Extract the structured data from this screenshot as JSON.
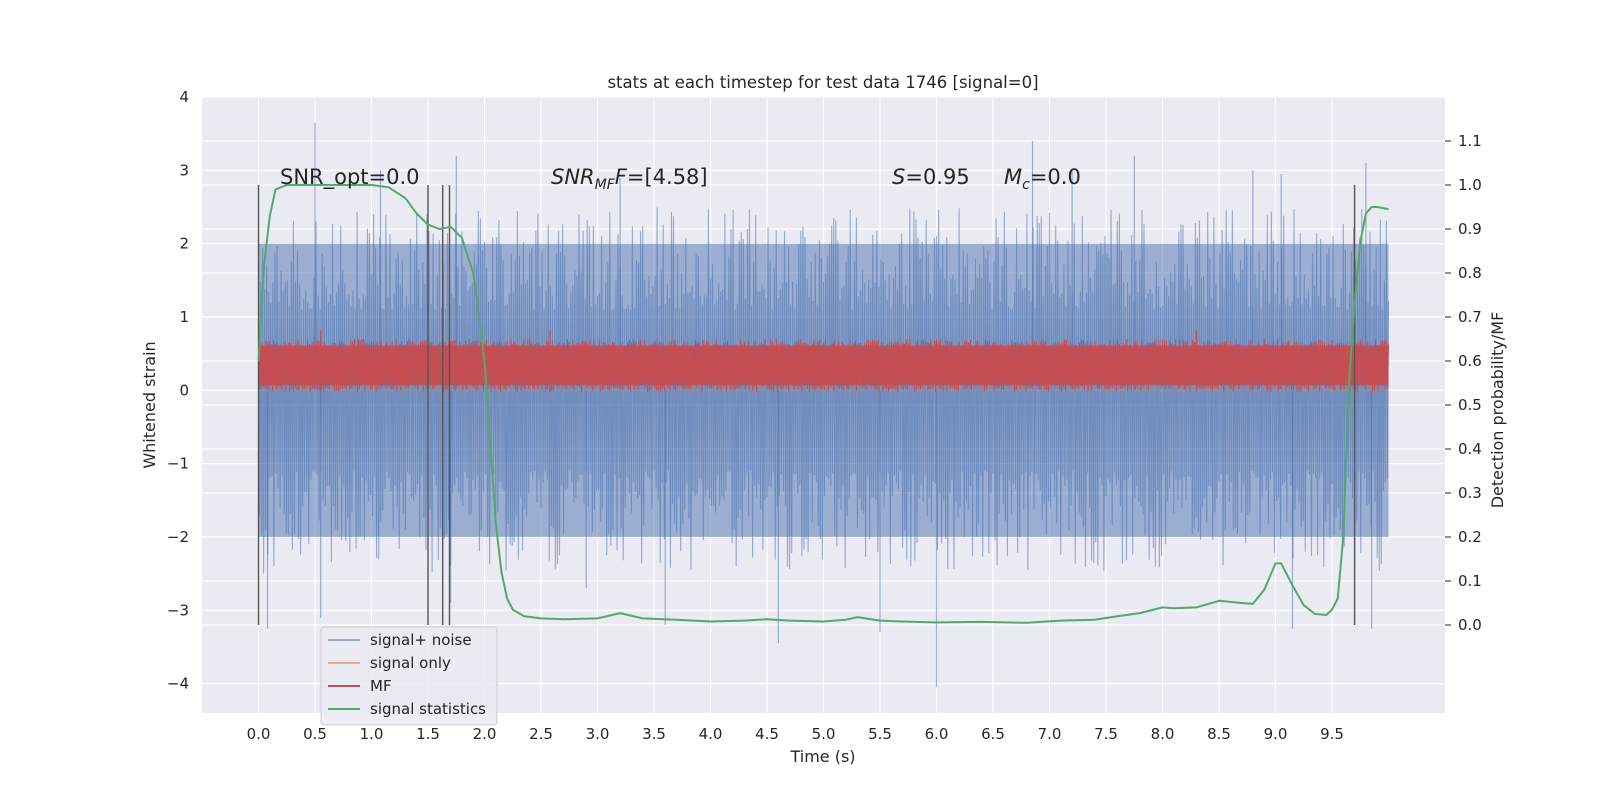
{
  "chart_data": {
    "type": "line",
    "title": "stats at each timestep for test data 1746 [signal=0]",
    "xlabel": "Time (s)",
    "ylabel_left": "Whitened strain",
    "ylabel_right": "Detection probability/MF",
    "xlim": [
      -0.5,
      10.5
    ],
    "ylim_left": [
      -4.4,
      4.0
    ],
    "ylim_right": [
      -0.2,
      1.2
    ],
    "x_ticks": [
      0.0,
      0.5,
      1.0,
      1.5,
      2.0,
      2.5,
      3.0,
      3.5,
      4.0,
      4.5,
      5.0,
      5.5,
      6.0,
      6.5,
      7.0,
      7.5,
      8.0,
      8.5,
      9.0,
      9.5
    ],
    "x_tick_labels": [
      "0.0",
      "0.5",
      "1.0",
      "1.5",
      "2.0",
      "2.5",
      "3.0",
      "3.5",
      "4.0",
      "4.5",
      "5.0",
      "5.5",
      "6.0",
      "6.5",
      "7.0",
      "7.5",
      "8.0",
      "8.5",
      "9.0",
      "9.5"
    ],
    "y_ticks_left": [
      -4,
      -3,
      -2,
      -1,
      0,
      1,
      2,
      3,
      4
    ],
    "y_tick_labels_left": [
      "−4",
      "−3",
      "−2",
      "−1",
      "0",
      "1",
      "2",
      "3",
      "4"
    ],
    "y_ticks_right": [
      0.0,
      0.1,
      0.2,
      0.3,
      0.4,
      0.5,
      0.6,
      0.7,
      0.8,
      0.9,
      1.0,
      1.1
    ],
    "y_tick_labels_right": [
      "0.0",
      "0.1",
      "0.2",
      "0.3",
      "0.4",
      "0.5",
      "0.6",
      "0.7",
      "0.8",
      "0.9",
      "1.0",
      "1.1"
    ],
    "grid": true,
    "legend_position": "lower-left",
    "annotations": {
      "snr_opt": "SNR_opt=0.0",
      "snr_mf_base": "SNR",
      "snr_mf_sub": "MF",
      "snr_mf_value": "=[4.58]",
      "s_symbol": "S",
      "s_value": "=0.95",
      "mc_symbol": "M",
      "mc_sub": "c",
      "mc_value": "=0.0"
    },
    "vertical_markers_x": [
      0.0,
      1.5,
      1.63,
      1.69,
      9.7
    ],
    "vertical_markers_ylim": [
      -3.2,
      2.8
    ],
    "series": [
      {
        "name": "signal+ noise",
        "color": "#4c72b0",
        "axis": "left",
        "x_range": [
          0.0,
          10.0
        ],
        "band": [
          -2.0,
          2.0
        ],
        "spikes": [
          [
            0.5,
            3.65
          ],
          [
            1.08,
            3.0
          ],
          [
            1.75,
            3.2
          ],
          [
            1.7,
            -2.9
          ],
          [
            2.9,
            -2.7
          ],
          [
            3.2,
            2.9
          ],
          [
            3.6,
            -3.2
          ],
          [
            4.6,
            -3.45
          ],
          [
            5.5,
            -3.3
          ],
          [
            6.0,
            -4.05
          ],
          [
            6.85,
            3.4
          ],
          [
            7.2,
            3.0
          ],
          [
            7.75,
            3.2
          ],
          [
            8.8,
            3.0
          ],
          [
            9.05,
            2.95
          ],
          [
            9.15,
            -3.25
          ],
          [
            9.8,
            3.1
          ],
          [
            9.85,
            -3.25
          ],
          [
            0.08,
            -3.25
          ],
          [
            0.55,
            -3.1
          ]
        ]
      },
      {
        "name": "signal only",
        "color": "#dd8452",
        "axis": "left",
        "values": "zero"
      },
      {
        "name": "MF",
        "color": "#c44e52",
        "axis": "right",
        "x_range": [
          0.0,
          10.0
        ],
        "band": [
          0.53,
          0.65
        ],
        "peaks": [
          [
            0.55,
            0.67
          ],
          [
            2.58,
            0.67
          ],
          [
            8.3,
            0.67
          ]
        ]
      },
      {
        "name": "signal statistics",
        "color": "#55a868",
        "axis": "right",
        "x": [
          0.0,
          0.05,
          0.1,
          0.15,
          0.25,
          0.4,
          0.6,
          0.8,
          1.0,
          1.15,
          1.3,
          1.4,
          1.5,
          1.6,
          1.7,
          1.8,
          1.9,
          2.0,
          2.05,
          2.1,
          2.15,
          2.2,
          2.25,
          2.35,
          2.5,
          2.7,
          3.0,
          3.2,
          3.4,
          3.7,
          4.0,
          4.3,
          4.5,
          4.7,
          5.0,
          5.2,
          5.3,
          5.5,
          5.8,
          6.0,
          6.4,
          6.8,
          7.1,
          7.4,
          7.6,
          7.8,
          8.0,
          8.1,
          8.3,
          8.5,
          8.7,
          8.8,
          8.9,
          9.0,
          9.05,
          9.15,
          9.25,
          9.35,
          9.45,
          9.5,
          9.55,
          9.6,
          9.65,
          9.7,
          9.75,
          9.8,
          9.85,
          9.9,
          10.0
        ],
        "values": [
          0.6,
          0.82,
          0.93,
          0.99,
          1.0,
          1.0,
          1.0,
          1.0,
          1.0,
          0.995,
          0.97,
          0.935,
          0.91,
          0.9,
          0.905,
          0.88,
          0.8,
          0.6,
          0.42,
          0.23,
          0.12,
          0.06,
          0.035,
          0.02,
          0.015,
          0.013,
          0.015,
          0.027,
          0.015,
          0.012,
          0.008,
          0.01,
          0.013,
          0.01,
          0.008,
          0.012,
          0.018,
          0.01,
          0.007,
          0.006,
          0.007,
          0.005,
          0.01,
          0.012,
          0.02,
          0.027,
          0.04,
          0.038,
          0.04,
          0.055,
          0.05,
          0.048,
          0.08,
          0.14,
          0.14,
          0.09,
          0.045,
          0.025,
          0.023,
          0.035,
          0.06,
          0.2,
          0.55,
          0.73,
          0.87,
          0.935,
          0.95,
          0.95,
          0.945
        ]
      }
    ]
  }
}
